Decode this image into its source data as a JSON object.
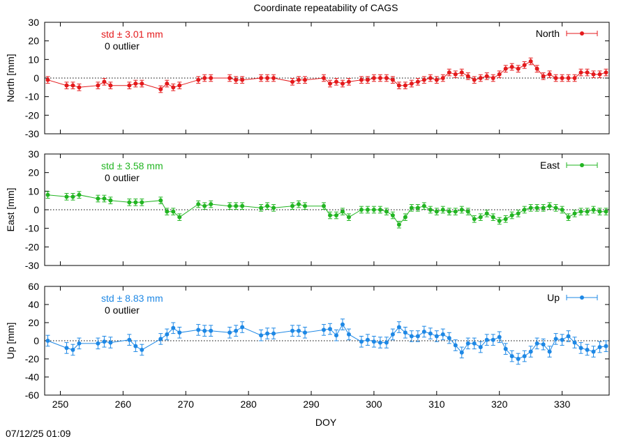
{
  "chart_data": {
    "type": "line",
    "title": "Coordinate repeatability of CAGS",
    "xlabel": "DOY",
    "xlim": [
      247.5,
      337.5
    ],
    "xticks": [
      250,
      260,
      270,
      280,
      290,
      300,
      310,
      320,
      330
    ],
    "timestamp": "07/12/25 01:09",
    "panels": [
      {
        "name": "North",
        "ylabel": "North [mm]",
        "ylim": [
          -30,
          30
        ],
        "yticks": [
          -30,
          -20,
          -10,
          0,
          10,
          20,
          30
        ],
        "color": "#e41a1c",
        "std_label": "std ± 3.01 mm",
        "outlier_label": "0 outlier",
        "legend": "North",
        "error": 1.8,
        "x": [
          248,
          251,
          252,
          253,
          256,
          257,
          258,
          261,
          262,
          263,
          266,
          267,
          268,
          269,
          272,
          273,
          274,
          277,
          278,
          279,
          282,
          283,
          284,
          287,
          288,
          289,
          292,
          293,
          294,
          295,
          296,
          298,
          299,
          300,
          301,
          302,
          303,
          304,
          305,
          306,
          307,
          308,
          309,
          310,
          311,
          312,
          313,
          314,
          315,
          316,
          317,
          318,
          319,
          320,
          321,
          322,
          323,
          324,
          325,
          326,
          327,
          328,
          329,
          330,
          331,
          332,
          333,
          334,
          335,
          336,
          337
        ],
        "y": [
          -1,
          -4,
          -4,
          -5,
          -4,
          -2,
          -4,
          -4,
          -3,
          -3,
          -6,
          -3,
          -5,
          -4,
          -1,
          0,
          0,
          0,
          -1,
          -1,
          0,
          0,
          0,
          -2,
          -1,
          -1,
          0,
          -3,
          -2,
          -3,
          -2,
          -1,
          -1,
          0,
          0,
          0,
          -1,
          -4,
          -4,
          -3,
          -2,
          -1,
          0,
          -1,
          0,
          3,
          2,
          3,
          1,
          -1,
          0,
          1,
          0,
          2,
          5,
          6,
          5,
          7,
          9,
          5,
          1,
          2,
          0,
          0,
          0,
          0,
          3,
          3,
          2,
          2,
          3
        ]
      },
      {
        "name": "East",
        "ylabel": "East [mm]",
        "ylim": [
          -30,
          30
        ],
        "yticks": [
          -30,
          -20,
          -10,
          0,
          10,
          20,
          30
        ],
        "color": "#22b522",
        "std_label": "std ± 3.58 mm",
        "outlier_label": "0 outlier",
        "legend": "East",
        "error": 1.8,
        "x": [
          248,
          251,
          252,
          253,
          256,
          257,
          258,
          261,
          262,
          263,
          266,
          267,
          268,
          269,
          272,
          273,
          274,
          277,
          278,
          279,
          282,
          283,
          284,
          287,
          288,
          289,
          292,
          293,
          294,
          295,
          296,
          298,
          299,
          300,
          301,
          302,
          303,
          304,
          305,
          306,
          307,
          308,
          309,
          310,
          311,
          312,
          313,
          314,
          315,
          316,
          317,
          318,
          319,
          320,
          321,
          322,
          323,
          324,
          325,
          326,
          327,
          328,
          329,
          330,
          331,
          332,
          333,
          334,
          335,
          336,
          337
        ],
        "y": [
          8,
          7,
          7,
          8,
          6,
          6,
          5,
          4,
          4,
          4,
          5,
          -1,
          -1,
          -4,
          3,
          2,
          3,
          2,
          2,
          2,
          1,
          2,
          1,
          2,
          3,
          2,
          2,
          -3,
          -3,
          -1,
          -4,
          0,
          0,
          0,
          0,
          -1,
          -3,
          -8,
          -4,
          1,
          1,
          2,
          0,
          -1,
          0,
          -1,
          -1,
          0,
          -1,
          -5,
          -4,
          -2,
          -4,
          -6,
          -5,
          -3,
          -2,
          0,
          1,
          1,
          1,
          2,
          1,
          0,
          -4,
          -2,
          -1,
          -1,
          0,
          -1,
          -1
        ]
      },
      {
        "name": "Up",
        "ylabel": "Up [mm]",
        "ylim": [
          -60,
          60
        ],
        "yticks": [
          -60,
          -40,
          -20,
          0,
          20,
          40,
          60
        ],
        "color": "#1e88e5",
        "std_label": "std ± 8.83 mm",
        "outlier_label": "0 outlier",
        "legend": "Up",
        "error": 6,
        "x": [
          248,
          251,
          252,
          253,
          256,
          257,
          258,
          261,
          262,
          263,
          266,
          267,
          268,
          269,
          272,
          273,
          274,
          277,
          278,
          279,
          282,
          283,
          284,
          287,
          288,
          289,
          292,
          293,
          294,
          295,
          296,
          298,
          299,
          300,
          301,
          302,
          303,
          304,
          305,
          306,
          307,
          308,
          309,
          310,
          311,
          312,
          313,
          314,
          315,
          316,
          317,
          318,
          319,
          320,
          321,
          322,
          323,
          324,
          325,
          326,
          327,
          328,
          329,
          330,
          331,
          332,
          333,
          334,
          335,
          336,
          337
        ],
        "y": [
          0,
          -8,
          -10,
          -3,
          -3,
          -1,
          -2,
          1,
          -6,
          -10,
          2,
          7,
          14,
          9,
          12,
          11,
          11,
          9,
          11,
          15,
          6,
          8,
          8,
          11,
          11,
          9,
          12,
          13,
          6,
          18,
          7,
          -1,
          1,
          -1,
          -2,
          -2,
          7,
          15,
          9,
          5,
          5,
          10,
          8,
          5,
          7,
          3,
          -5,
          -13,
          -3,
          -3,
          -7,
          1,
          1,
          4,
          -9,
          -17,
          -20,
          -17,
          -12,
          -3,
          -4,
          -12,
          2,
          1,
          5,
          -2,
          -8,
          -10,
          -12,
          -7,
          -6
        ]
      }
    ]
  }
}
